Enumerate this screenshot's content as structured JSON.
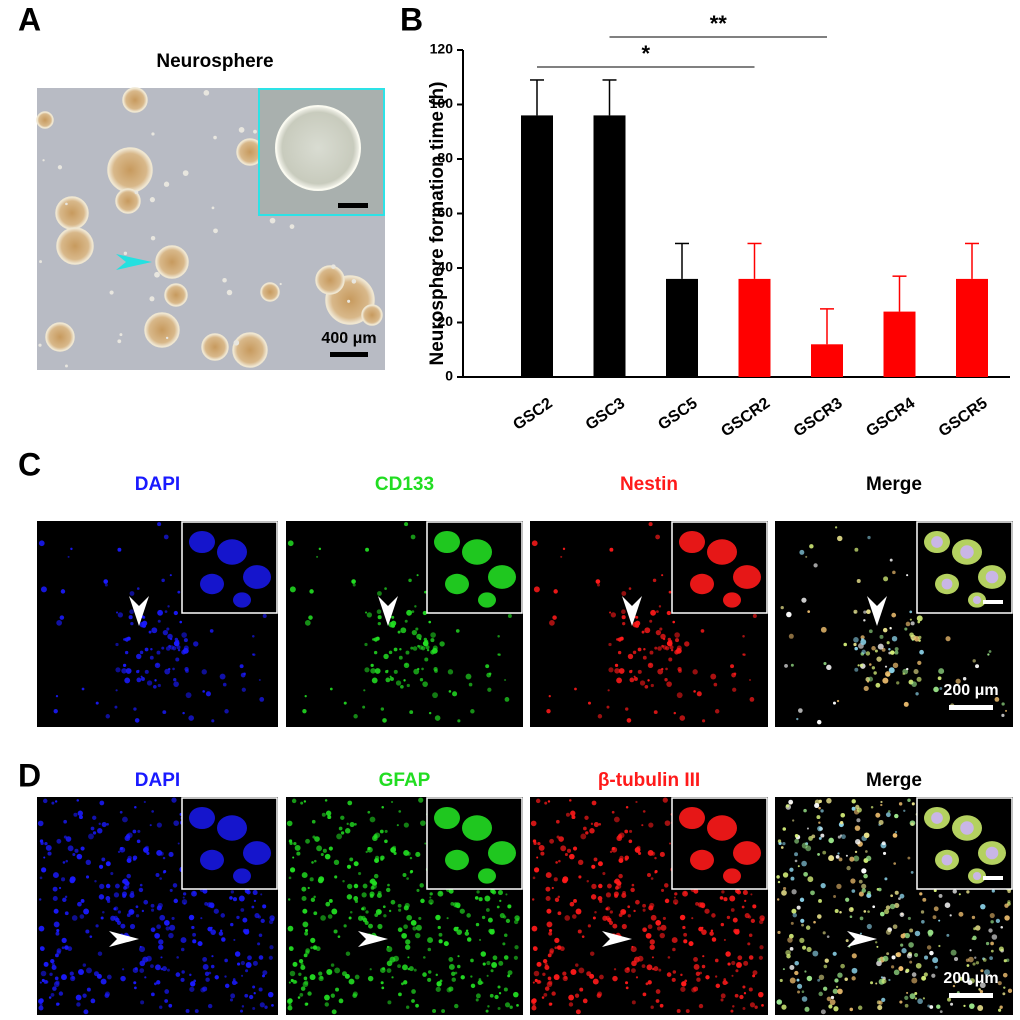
{
  "panel_labels": [
    "A",
    "B",
    "C",
    "D"
  ],
  "panel_a": {
    "title": "Neurosphere",
    "scale_bar": "400 μm"
  },
  "chart_data": {
    "type": "bar",
    "ylabel": "Neurosphere formation time (h)",
    "categories": [
      "GSC2",
      "GSC3",
      "GSC5",
      "GSCR2",
      "GSCR3",
      "GSCR4",
      "GSCR5"
    ],
    "values": [
      96,
      96,
      36,
      36,
      12,
      24,
      36
    ],
    "errors": [
      13,
      13,
      13,
      13,
      13,
      13,
      13
    ],
    "colors": [
      "#000000",
      "#000000",
      "#000000",
      "#ff0000",
      "#ff0000",
      "#ff0000",
      "#ff0000"
    ],
    "ylim": [
      0,
      120
    ],
    "yticks": [
      0,
      20,
      40,
      60,
      80,
      100,
      120
    ],
    "annotations": [
      {
        "label": "*",
        "from": "GSC2",
        "to": "GSCR2"
      },
      {
        "label": "**",
        "from": "GSC3",
        "to": "GSCR3"
      }
    ]
  },
  "panel_c": {
    "channels": [
      {
        "name": "DAPI",
        "color": "#1a1aff"
      },
      {
        "name": "CD133",
        "color": "#22dd22"
      },
      {
        "name": "Nestin",
        "color": "#ff1a1a"
      },
      {
        "name": "Merge",
        "color": "#000000"
      }
    ],
    "scale_bar": "200 μm"
  },
  "panel_d": {
    "channels": [
      {
        "name": "DAPI",
        "color": "#1a1aff"
      },
      {
        "name": "GFAP",
        "color": "#22dd22"
      },
      {
        "name": "β-tubulin III",
        "color": "#ff1a1a"
      },
      {
        "name": "Merge",
        "color": "#000000"
      }
    ],
    "scale_bar": "200 μm"
  }
}
